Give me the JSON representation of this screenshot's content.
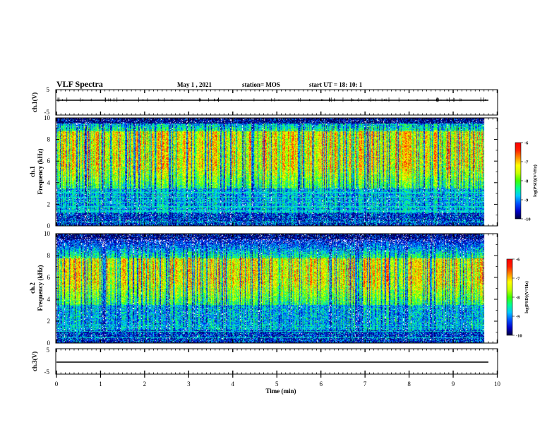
{
  "header": {
    "title": "VLF Spectra",
    "date": "May 1 , 2021",
    "station": "station= MOS",
    "start": "start UT = 18: 10: 1"
  },
  "colors": {
    "scale": [
      "#000040",
      "#0000c8",
      "#0050ff",
      "#00c8ff",
      "#00ff90",
      "#40ff00",
      "#c8ff00",
      "#ffff00",
      "#ff9000",
      "#ff2000",
      "#ff0000"
    ]
  },
  "chart_data": [
    {
      "type": "line",
      "panel": "ch1-waveform",
      "ylabel": "ch.1(V)",
      "ylim": [
        -5,
        5
      ],
      "yticks": [
        "5",
        "-5"
      ],
      "trace_level": -1
    },
    {
      "type": "heatmap",
      "panel": "ch1-spectrogram",
      "ylabel": "ch.1",
      "ylabel2": "Frequency (kHz)",
      "ylim": [
        0,
        10
      ],
      "yticks": [
        "0",
        "2",
        "4",
        "6",
        "8",
        "10"
      ],
      "colorbar": {
        "label": "log(PSD)(V²/Hz)",
        "range": [
          -10,
          -6
        ],
        "ticks": [
          "-6",
          "-7",
          "-8",
          "-9",
          "-10"
        ]
      },
      "peak_band_khz": [
        5.5,
        8.8
      ]
    },
    {
      "type": "heatmap",
      "panel": "ch2-spectrogram",
      "ylabel": "ch.2",
      "ylabel2": "Frequency (kHz)",
      "ylim": [
        0,
        10
      ],
      "yticks": [
        "0",
        "2",
        "4",
        "6",
        "8",
        "10"
      ],
      "colorbar": {
        "label": "log(PSD)(V²/Hz)",
        "range": [
          -10,
          -6
        ],
        "ticks": [
          "-6",
          "-7",
          "-8",
          "-9",
          "-10"
        ]
      },
      "peak_band_khz": [
        5.5,
        7.8
      ]
    },
    {
      "type": "line",
      "panel": "ch3-waveform",
      "ylabel": "ch.3(V)",
      "ylim": [
        -5,
        5
      ],
      "yticks": [
        "5",
        "-5"
      ],
      "trace_level": -1
    },
    {
      "type": "line",
      "panel": "time-axis",
      "xlabel": "Time (min)",
      "xlim": [
        0,
        10
      ],
      "xticks": [
        "0",
        "1",
        "2",
        "3",
        "4",
        "5",
        "6",
        "7",
        "8",
        "9",
        "10"
      ],
      "data_end_min": 9.83
    }
  ]
}
